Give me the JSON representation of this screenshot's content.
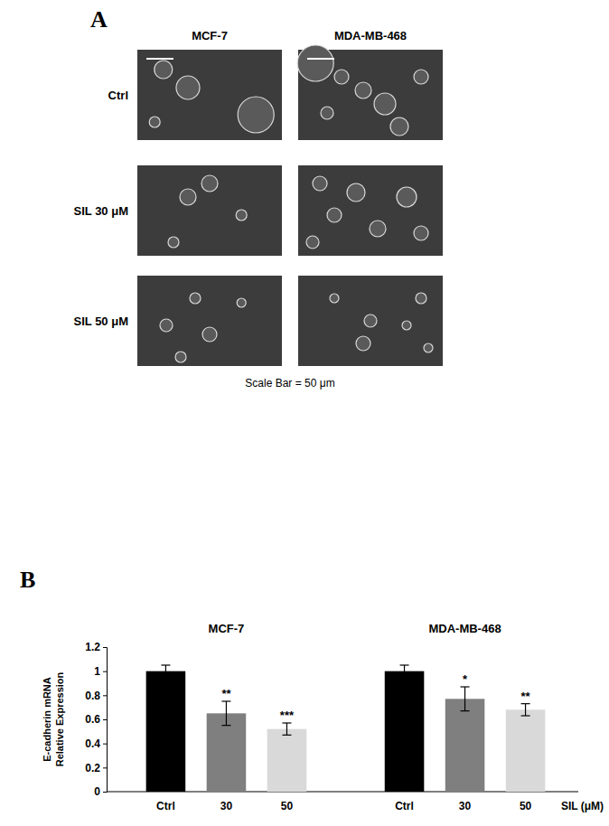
{
  "panel_a": {
    "panel_label": "A",
    "columns": [
      "MCF-7",
      "MDA-MB-468"
    ],
    "rows": [
      "Ctrl",
      "SIL 30 μM",
      "SIL 50 μM"
    ],
    "caption": "Scale Bar = 50 μm"
  },
  "chart_data": {
    "type": "bar",
    "panel_label": "B",
    "y_label": "E-cadherin mRNA Relative Expression",
    "x_label": "SIL (μM)",
    "categories": [
      "Ctrl",
      "30",
      "50"
    ],
    "colors": [
      "#000000",
      "#7f7f7f",
      "#d9d9d9"
    ],
    "series": [
      {
        "name": "MCF-7",
        "values": [
          1.0,
          0.65,
          0.52
        ],
        "errors": [
          0.05,
          0.1,
          0.05
        ],
        "significance": [
          null,
          "**",
          "***"
        ]
      },
      {
        "name": "MDA-MB-468",
        "values": [
          1.0,
          0.77,
          0.68
        ],
        "errors": [
          0.05,
          0.1,
          0.05
        ],
        "significance": [
          null,
          "*",
          "**"
        ]
      }
    ],
    "ylim": [
      0,
      1.2
    ],
    "yticks": [
      0,
      0.2,
      0.4,
      0.6,
      0.8,
      1,
      1.2
    ],
    "grid": false
  }
}
